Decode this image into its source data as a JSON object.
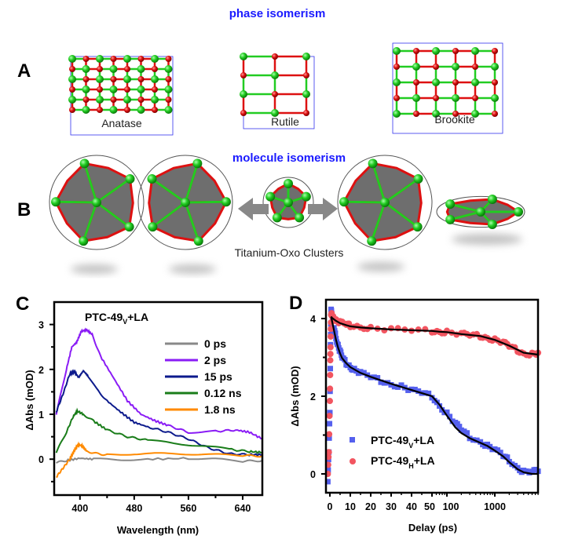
{
  "panel_a": {
    "label": "A",
    "title": "phase isomerism",
    "structures": [
      "Anatase",
      "Rutile",
      "Brookite"
    ]
  },
  "panel_b": {
    "label": "B",
    "title": "molecule isomerism",
    "caption": "Titanium-Oxo Clusters"
  },
  "colors": {
    "ti_atom": "#22cc22",
    "o_atom": "#dd1111",
    "cell": "#3333ee",
    "polyhedron": "#6e6e6e",
    "arrow": "#888888"
  },
  "chart_data": [
    {
      "panel": "C",
      "type": "line",
      "title": {
        "main": "PTC-49",
        "sub": "V",
        "suffix": "+LA"
      },
      "xlabel": "Wavelength (nm)",
      "ylabel": "ΔAbs (mOD)",
      "xlim": [
        362,
        669
      ],
      "ylim": [
        -0.8,
        3.5
      ],
      "xticks": [
        400,
        480,
        560,
        640
      ],
      "xminor": [
        440,
        520,
        600
      ],
      "yticks": [
        0,
        1,
        2,
        3
      ],
      "yminor": [
        -0.5,
        0.5,
        1.5,
        2.5
      ],
      "legend_position": "top-right",
      "series": [
        {
          "name": "0 ps",
          "color": "#888888",
          "x": [
            365,
            380,
            400,
            420,
            460,
            500,
            560,
            600,
            640,
            669
          ],
          "y": [
            -0.08,
            -0.03,
            0.02,
            0.0,
            -0.01,
            0.0,
            0.02,
            0.0,
            -0.05,
            -0.03
          ]
        },
        {
          "name": "2 ps",
          "color": "#8a1cf5",
          "x": [
            365,
            380,
            388,
            395,
            402,
            410,
            418,
            430,
            450,
            470,
            490,
            510,
            530,
            560,
            600,
            630,
            650,
            669
          ],
          "y": [
            1.0,
            2.0,
            2.5,
            2.6,
            2.85,
            2.88,
            2.78,
            2.3,
            1.8,
            1.3,
            1.0,
            0.86,
            0.75,
            0.6,
            0.62,
            0.65,
            0.6,
            0.45
          ]
        },
        {
          "name": "15 ps",
          "color": "#0c1a8c",
          "x": [
            365,
            375,
            385,
            392,
            398,
            405,
            412,
            425,
            440,
            460,
            480,
            500,
            530,
            560,
            590,
            620,
            650,
            669
          ],
          "y": [
            1.05,
            1.45,
            1.9,
            1.95,
            1.82,
            1.97,
            1.85,
            1.55,
            1.3,
            1.05,
            0.82,
            0.72,
            0.6,
            0.45,
            0.25,
            0.12,
            0.1,
            0.1
          ]
        },
        {
          "name": "0.12 ns",
          "color": "#1a7d1a",
          "x": [
            365,
            380,
            390,
            396,
            405,
            420,
            440,
            470,
            500,
            540,
            580,
            620,
            650,
            669
          ],
          "y": [
            0.15,
            0.6,
            0.95,
            1.07,
            1.0,
            0.85,
            0.65,
            0.5,
            0.42,
            0.35,
            0.3,
            0.22,
            0.17,
            0.15
          ]
        },
        {
          "name": "1.8 ns",
          "color": "#ff8a00",
          "x": [
            365,
            375,
            385,
            392,
            397,
            403,
            410,
            425,
            440,
            480,
            520,
            560,
            600,
            640,
            669
          ],
          "y": [
            -0.4,
            -0.2,
            0.0,
            0.2,
            0.32,
            0.3,
            0.18,
            0.12,
            0.1,
            0.12,
            0.12,
            0.12,
            0.1,
            0.08,
            0.07
          ]
        }
      ]
    },
    {
      "panel": "D",
      "type": "scatter",
      "xlabel": "Delay (ps)",
      "ylabel": "ΔAbs (mOD)",
      "x_axis": "broken: linear 0–50, log 50–8000",
      "xlim": [
        -2,
        8000
      ],
      "ylim": [
        -0.5,
        4.5
      ],
      "xticks_linear": [
        0,
        10,
        20,
        30,
        40,
        50
      ],
      "xticks_log": [
        100,
        1000
      ],
      "yticks": [
        0,
        2,
        4
      ],
      "yminor": [
        1,
        3
      ],
      "legend_position": "bottom-left",
      "series": [
        {
          "name": {
            "main": "PTC-49",
            "sub": "V",
            "suffix": "+LA"
          },
          "marker": "square",
          "color": "#5560ee",
          "x": [
            -1,
            -0.5,
            0,
            0.3,
            0.6,
            1,
            2,
            3,
            4,
            5,
            6,
            8,
            10,
            12,
            15,
            20,
            25,
            30,
            35,
            40,
            45,
            50,
            70,
            100,
            150,
            200,
            300,
            500,
            700,
            1000,
            1500,
            2000,
            3000,
            4000,
            6000,
            8000
          ],
          "y": [
            -0.2,
            0.6,
            1.6,
            3.3,
            4.2,
            4.1,
            3.8,
            3.5,
            3.3,
            3.15,
            3.0,
            2.85,
            2.75,
            2.68,
            2.6,
            2.5,
            2.4,
            2.3,
            2.25,
            2.15,
            2.1,
            2.0,
            1.75,
            1.55,
            1.3,
            1.15,
            0.95,
            0.82,
            0.72,
            0.62,
            0.48,
            0.35,
            0.15,
            0.05,
            0.05,
            0.1
          ],
          "fit_x": [
            0.6,
            1,
            2,
            3,
            4,
            5,
            6,
            8,
            10,
            15,
            20,
            30,
            40,
            50,
            70,
            100,
            150,
            200,
            300,
            500,
            700,
            1000,
            1500,
            2000,
            3000,
            4000,
            6000,
            8000
          ],
          "fit_y": [
            4.05,
            3.95,
            3.7,
            3.45,
            3.25,
            3.1,
            2.98,
            2.85,
            2.75,
            2.6,
            2.5,
            2.32,
            2.16,
            2.0,
            1.78,
            1.5,
            1.2,
            1.05,
            0.92,
            0.8,
            0.72,
            0.6,
            0.45,
            0.3,
            0.12,
            0.04,
            0.0,
            0.0
          ]
        },
        {
          "name": {
            "main": "PTC-49",
            "sub": "H",
            "suffix": "+LA"
          },
          "marker": "circle",
          "color": "#f25560",
          "x": [
            -1,
            -0.5,
            0,
            0.2,
            0.4,
            0.6,
            1,
            2,
            3,
            5,
            8,
            10,
            15,
            20,
            30,
            40,
            50,
            70,
            100,
            200,
            300,
            500,
            700,
            1000,
            1500,
            2000,
            3000,
            4000,
            6000,
            8000
          ],
          "y": [
            0.0,
            0.6,
            1.9,
            2.9,
            3.5,
            4.1,
            4.1,
            4.0,
            3.95,
            3.9,
            3.85,
            3.82,
            3.78,
            3.75,
            3.72,
            3.7,
            3.68,
            3.66,
            3.65,
            3.6,
            3.58,
            3.55,
            3.5,
            3.45,
            3.38,
            3.3,
            3.18,
            3.1,
            3.08,
            3.1
          ],
          "fit_x": [
            0.6,
            1,
            2,
            3,
            5,
            8,
            10,
            15,
            20,
            30,
            40,
            50,
            70,
            100,
            200,
            500,
            1000,
            2000,
            4000,
            8000
          ],
          "fit_y": [
            4.05,
            4.02,
            3.98,
            3.94,
            3.88,
            3.83,
            3.8,
            3.77,
            3.75,
            3.72,
            3.7,
            3.68,
            3.66,
            3.65,
            3.6,
            3.55,
            3.45,
            3.3,
            3.12,
            3.07
          ]
        }
      ]
    }
  ]
}
